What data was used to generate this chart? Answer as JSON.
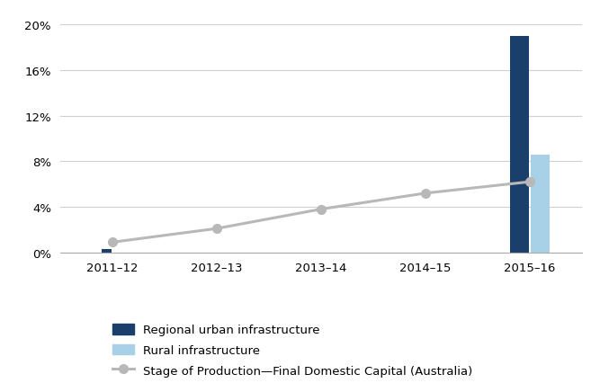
{
  "categories": [
    "2011–12",
    "2012–13",
    "2013–14",
    "2014–15",
    "2015–16"
  ],
  "urban_bars": [
    0.003,
    0,
    0,
    0,
    0.19
  ],
  "rural_bars": [
    0,
    0,
    0,
    0,
    0.086
  ],
  "line_values": [
    0.009,
    0.021,
    0.038,
    0.052,
    0.062
  ],
  "urban_color": "#1b3f6b",
  "rural_color": "#a8d1e8",
  "line_color": "#b8b8b8",
  "marker_color": "#b8b8b8",
  "yticks": [
    0,
    0.04,
    0.08,
    0.12,
    0.16,
    0.2
  ],
  "ytick_labels": [
    "0%",
    "4%",
    "8%",
    "12%",
    "16%",
    "20%"
  ],
  "ylim": [
    0,
    0.212
  ],
  "bar_width": 0.18,
  "legend_urban": "Regional urban infrastructure",
  "legend_rural": "Rural infrastructure",
  "legend_line": "Stage of Production—Final Domestic Capital (Australia)",
  "background_color": "#ffffff",
  "grid_color": "#d0d0d0",
  "spine_color": "#aaaaaa"
}
